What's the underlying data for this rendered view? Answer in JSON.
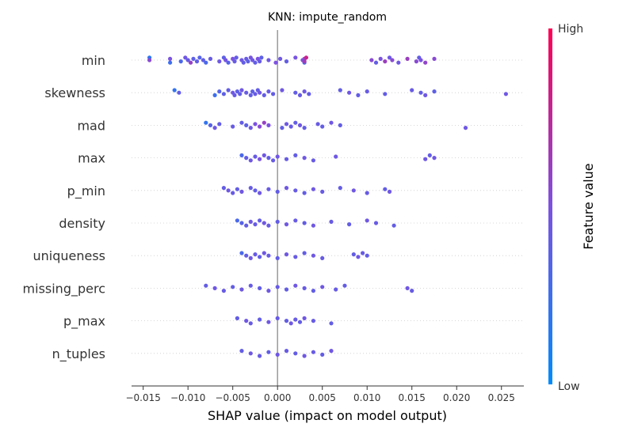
{
  "chart_data": {
    "type": "scatter",
    "title": "KNN: impute_random",
    "xlabel": "SHAP value (impact on model output)",
    "xlim": [
      -0.0163,
      0.0275
    ],
    "xticks": [
      -0.015,
      -0.01,
      -0.005,
      0.0,
      0.005,
      0.01,
      0.015,
      0.02,
      0.025
    ],
    "xtick_labels": [
      "−0.015",
      "−0.010",
      "−0.005",
      "0.000",
      "0.005",
      "0.010",
      "0.015",
      "0.020",
      "0.025"
    ],
    "colorbar": {
      "label": "Feature value",
      "high_label": "High",
      "low_label": "Low",
      "low_color": "#008bfb",
      "high_color": "#ff0052"
    },
    "features": [
      {
        "name": "min",
        "points": [
          [
            -0.0143,
            0.18
          ],
          [
            -0.0143,
            0.55
          ],
          [
            -0.012,
            0.25
          ],
          [
            -0.012,
            0.5
          ],
          [
            -0.0108,
            0.3
          ],
          [
            -0.0103,
            0.45
          ],
          [
            -0.01,
            0.42
          ],
          [
            -0.0097,
            0.6
          ],
          [
            -0.0094,
            0.38
          ],
          [
            -0.009,
            0.4
          ],
          [
            -0.0087,
            0.35
          ],
          [
            -0.0083,
            0.4
          ],
          [
            -0.008,
            0.3
          ],
          [
            -0.0075,
            0.42
          ],
          [
            -0.0065,
            0.45
          ],
          [
            -0.006,
            0.38
          ],
          [
            -0.0058,
            0.48
          ],
          [
            -0.0055,
            0.35
          ],
          [
            -0.005,
            0.5
          ],
          [
            -0.0048,
            0.42
          ],
          [
            -0.0046,
            0.4
          ],
          [
            -0.004,
            0.45
          ],
          [
            -0.0038,
            0.4
          ],
          [
            -0.0035,
            0.42
          ],
          [
            -0.0033,
            0.38
          ],
          [
            -0.003,
            0.48
          ],
          [
            -0.0028,
            0.45
          ],
          [
            -0.0025,
            0.4
          ],
          [
            -0.0022,
            0.5
          ],
          [
            -0.002,
            0.42
          ],
          [
            -0.0018,
            0.38
          ],
          [
            -0.001,
            0.45
          ],
          [
            -0.0002,
            0.5
          ],
          [
            0.0003,
            0.45
          ],
          [
            0.001,
            0.4
          ],
          [
            0.002,
            0.48
          ],
          [
            0.0028,
            0.45
          ],
          [
            0.003,
            0.3
          ],
          [
            0.003,
            0.55
          ],
          [
            0.003,
            0.65
          ],
          [
            0.0032,
            0.8
          ],
          [
            0.0105,
            0.55
          ],
          [
            0.011,
            0.4
          ],
          [
            0.0115,
            0.5
          ],
          [
            0.012,
            0.62
          ],
          [
            0.0125,
            0.45
          ],
          [
            0.0128,
            0.55
          ],
          [
            0.0135,
            0.45
          ],
          [
            0.0145,
            0.62
          ],
          [
            0.0155,
            0.55
          ],
          [
            0.0158,
            0.4
          ],
          [
            0.016,
            0.5
          ],
          [
            0.0165,
            0.58
          ],
          [
            0.0175,
            0.55
          ]
        ]
      },
      {
        "name": "skewness",
        "points": [
          [
            -0.0115,
            0.2
          ],
          [
            -0.011,
            0.4
          ],
          [
            -0.007,
            0.25
          ],
          [
            -0.0065,
            0.35
          ],
          [
            -0.006,
            0.38
          ],
          [
            -0.0055,
            0.4
          ],
          [
            -0.005,
            0.45
          ],
          [
            -0.0048,
            0.42
          ],
          [
            -0.0045,
            0.38
          ],
          [
            -0.0042,
            0.4
          ],
          [
            -0.004,
            0.45
          ],
          [
            -0.0035,
            0.42
          ],
          [
            -0.003,
            0.4
          ],
          [
            -0.0028,
            0.38
          ],
          [
            -0.0025,
            0.42
          ],
          [
            -0.0022,
            0.4
          ],
          [
            -0.002,
            0.45
          ],
          [
            -0.0015,
            0.4
          ],
          [
            -0.001,
            0.42
          ],
          [
            -0.0005,
            0.4
          ],
          [
            0.0005,
            0.45
          ],
          [
            0.002,
            0.4
          ],
          [
            0.0025,
            0.42
          ],
          [
            0.003,
            0.45
          ],
          [
            0.0035,
            0.4
          ],
          [
            0.007,
            0.4
          ],
          [
            0.008,
            0.45
          ],
          [
            0.009,
            0.4
          ],
          [
            0.01,
            0.42
          ],
          [
            0.012,
            0.4
          ],
          [
            0.015,
            0.42
          ],
          [
            0.016,
            0.4
          ],
          [
            0.0165,
            0.45
          ],
          [
            0.0175,
            0.38
          ],
          [
            0.0255,
            0.45
          ]
        ]
      },
      {
        "name": "mad",
        "points": [
          [
            -0.008,
            0.2
          ],
          [
            -0.0075,
            0.35
          ],
          [
            -0.007,
            0.45
          ],
          [
            -0.0065,
            0.4
          ],
          [
            -0.005,
            0.42
          ],
          [
            -0.004,
            0.4
          ],
          [
            -0.0035,
            0.38
          ],
          [
            -0.003,
            0.45
          ],
          [
            -0.0025,
            0.5
          ],
          [
            -0.002,
            0.55
          ],
          [
            -0.0015,
            0.6
          ],
          [
            -0.001,
            0.5
          ],
          [
            0.0005,
            0.4
          ],
          [
            0.001,
            0.45
          ],
          [
            0.0015,
            0.42
          ],
          [
            0.002,
            0.4
          ],
          [
            0.0025,
            0.45
          ],
          [
            0.003,
            0.4
          ],
          [
            0.0045,
            0.42
          ],
          [
            0.005,
            0.4
          ],
          [
            0.006,
            0.45
          ],
          [
            0.007,
            0.4
          ],
          [
            0.021,
            0.45
          ]
        ]
      },
      {
        "name": "max",
        "points": [
          [
            -0.004,
            0.3
          ],
          [
            -0.0035,
            0.4
          ],
          [
            -0.003,
            0.45
          ],
          [
            -0.0025,
            0.42
          ],
          [
            -0.002,
            0.5
          ],
          [
            -0.0015,
            0.45
          ],
          [
            -0.001,
            0.4
          ],
          [
            -0.0005,
            0.42
          ],
          [
            0.0,
            0.45
          ],
          [
            0.001,
            0.42
          ],
          [
            0.002,
            0.4
          ],
          [
            0.003,
            0.45
          ],
          [
            0.004,
            0.42
          ],
          [
            0.0065,
            0.45
          ],
          [
            0.0165,
            0.45
          ],
          [
            0.017,
            0.4
          ],
          [
            0.0175,
            0.45
          ]
        ]
      },
      {
        "name": "p_min",
        "points": [
          [
            -0.006,
            0.4
          ],
          [
            -0.0055,
            0.45
          ],
          [
            -0.005,
            0.42
          ],
          [
            -0.0045,
            0.4
          ],
          [
            -0.004,
            0.45
          ],
          [
            -0.003,
            0.42
          ],
          [
            -0.0025,
            0.4
          ],
          [
            -0.002,
            0.45
          ],
          [
            -0.001,
            0.42
          ],
          [
            0.0,
            0.4
          ],
          [
            0.001,
            0.45
          ],
          [
            0.002,
            0.42
          ],
          [
            0.003,
            0.4
          ],
          [
            0.004,
            0.45
          ],
          [
            0.005,
            0.42
          ],
          [
            0.007,
            0.4
          ],
          [
            0.0085,
            0.45
          ],
          [
            0.01,
            0.42
          ],
          [
            0.012,
            0.4
          ],
          [
            0.0125,
            0.45
          ]
        ]
      },
      {
        "name": "density",
        "points": [
          [
            -0.0045,
            0.3
          ],
          [
            -0.004,
            0.35
          ],
          [
            -0.0035,
            0.4
          ],
          [
            -0.003,
            0.45
          ],
          [
            -0.0025,
            0.42
          ],
          [
            -0.002,
            0.4
          ],
          [
            -0.0015,
            0.45
          ],
          [
            -0.001,
            0.42
          ],
          [
            0.0,
            0.4
          ],
          [
            0.001,
            0.45
          ],
          [
            0.002,
            0.42
          ],
          [
            0.003,
            0.4
          ],
          [
            0.004,
            0.45
          ],
          [
            0.006,
            0.42
          ],
          [
            0.008,
            0.4
          ],
          [
            0.01,
            0.45
          ],
          [
            0.011,
            0.42
          ],
          [
            0.013,
            0.4
          ]
        ]
      },
      {
        "name": "uniqueness",
        "points": [
          [
            -0.004,
            0.3
          ],
          [
            -0.0035,
            0.4
          ],
          [
            -0.003,
            0.45
          ],
          [
            -0.0025,
            0.42
          ],
          [
            -0.002,
            0.4
          ],
          [
            -0.0015,
            0.45
          ],
          [
            -0.001,
            0.42
          ],
          [
            0.0,
            0.4
          ],
          [
            0.001,
            0.45
          ],
          [
            0.002,
            0.42
          ],
          [
            0.003,
            0.4
          ],
          [
            0.004,
            0.45
          ],
          [
            0.005,
            0.42
          ],
          [
            0.0085,
            0.4
          ],
          [
            0.009,
            0.45
          ],
          [
            0.0095,
            0.42
          ],
          [
            0.01,
            0.4
          ]
        ]
      },
      {
        "name": "missing_perc",
        "points": [
          [
            -0.008,
            0.4
          ],
          [
            -0.007,
            0.45
          ],
          [
            -0.006,
            0.42
          ],
          [
            -0.005,
            0.4
          ],
          [
            -0.004,
            0.45
          ],
          [
            -0.003,
            0.42
          ],
          [
            -0.002,
            0.4
          ],
          [
            -0.001,
            0.45
          ],
          [
            0.0,
            0.42
          ],
          [
            0.001,
            0.4
          ],
          [
            0.002,
            0.45
          ],
          [
            0.003,
            0.42
          ],
          [
            0.004,
            0.4
          ],
          [
            0.005,
            0.45
          ],
          [
            0.0065,
            0.42
          ],
          [
            0.0075,
            0.4
          ],
          [
            0.0145,
            0.45
          ],
          [
            0.015,
            0.42
          ]
        ]
      },
      {
        "name": "p_max",
        "points": [
          [
            -0.0045,
            0.4
          ],
          [
            -0.0035,
            0.45
          ],
          [
            -0.003,
            0.42
          ],
          [
            -0.002,
            0.4
          ],
          [
            -0.001,
            0.45
          ],
          [
            0.0,
            0.42
          ],
          [
            0.001,
            0.4
          ],
          [
            0.0015,
            0.45
          ],
          [
            0.002,
            0.42
          ],
          [
            0.0025,
            0.4
          ],
          [
            0.003,
            0.45
          ],
          [
            0.004,
            0.42
          ],
          [
            0.006,
            0.4
          ]
        ]
      },
      {
        "name": "n_tuples",
        "points": [
          [
            -0.004,
            0.4
          ],
          [
            -0.003,
            0.45
          ],
          [
            -0.002,
            0.42
          ],
          [
            -0.001,
            0.4
          ],
          [
            0.0,
            0.45
          ],
          [
            0.001,
            0.42
          ],
          [
            0.002,
            0.4
          ],
          [
            0.003,
            0.45
          ],
          [
            0.004,
            0.42
          ],
          [
            0.005,
            0.4
          ],
          [
            0.006,
            0.45
          ]
        ]
      }
    ]
  }
}
